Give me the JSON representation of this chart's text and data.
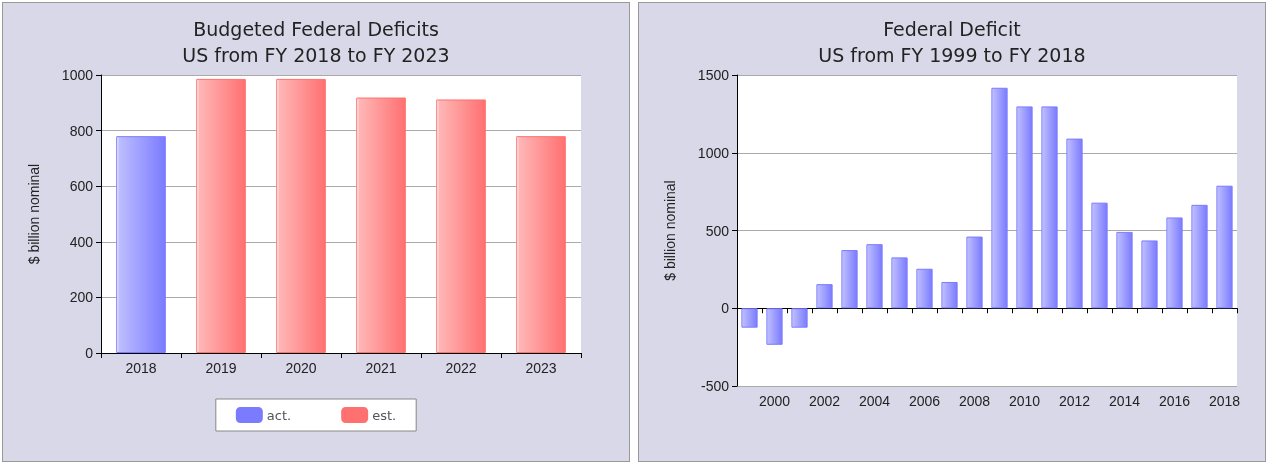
{
  "chart_data": [
    {
      "type": "bar",
      "title": "Budgeted Federal Deficits\nUS from FY 2018 to FY 2023",
      "ylabel": "$ billion nominal",
      "categories": [
        "2018",
        "2019",
        "2020",
        "2021",
        "2022",
        "2023"
      ],
      "series": [
        {
          "name": "act.",
          "color": "#7b7bff",
          "values": [
            780,
            null,
            null,
            null,
            null,
            null
          ]
        },
        {
          "name": "est.",
          "color": "#ff7070",
          "values": [
            null,
            986,
            986,
            919,
            912,
            780
          ]
        }
      ],
      "stacked": true,
      "ylim": [
        0,
        1000
      ],
      "yticks": [
        0,
        200,
        400,
        600,
        800,
        1000
      ],
      "grid": "y",
      "legend": "bottom"
    },
    {
      "type": "bar",
      "title": "Federal Deficit\nUS from FY 1999 to FY 2018",
      "ylabel": "$ billion nominal",
      "categories": [
        null,
        "2000",
        null,
        "2002",
        null,
        "2004",
        null,
        "2006",
        null,
        "2008",
        null,
        "2010",
        null,
        "2012",
        null,
        "2014",
        null,
        "2016",
        null,
        "2018"
      ],
      "series": [
        {
          "color": "#7b7bff",
          "values": [
            -125,
            -235,
            -125,
            155,
            374,
            412,
            327,
            254,
            169,
            461,
            1418,
            1298,
            1298,
            1091,
            679,
            491,
            436,
            584,
            665,
            788
          ]
        }
      ],
      "ylim": [
        -500,
        1500
      ],
      "yticks": [
        -500,
        0,
        500,
        1000,
        1500
      ],
      "grid": "y"
    }
  ]
}
